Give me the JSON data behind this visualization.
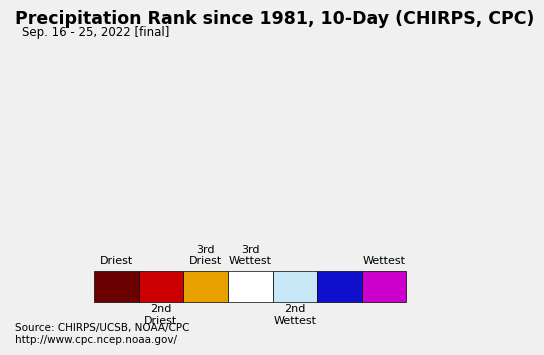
{
  "title": "Precipitation Rank since 1981, 10-Day (CHIRPS, CPC)",
  "subtitle": "Sep. 16 - 25, 2022 [final]",
  "source_line1": "Source: CHIRPS/UCSB, NOAA/CPC",
  "source_line2": "http://www.cpc.ncep.noaa.gov/",
  "ocean_color": "#add8e6",
  "land_color": "#ffffff",
  "legend_colors": [
    "#6b0000",
    "#cc0000",
    "#e8a000",
    "#ffffff",
    "#c8e8f8",
    "#1010cc",
    "#cc00cc"
  ],
  "title_fontsize": 12.5,
  "subtitle_fontsize": 8.5,
  "source_fontsize": 7.5,
  "legend_fontsize": 8,
  "background_color": "#f0f0f0",
  "map_bg": "#add8e6"
}
